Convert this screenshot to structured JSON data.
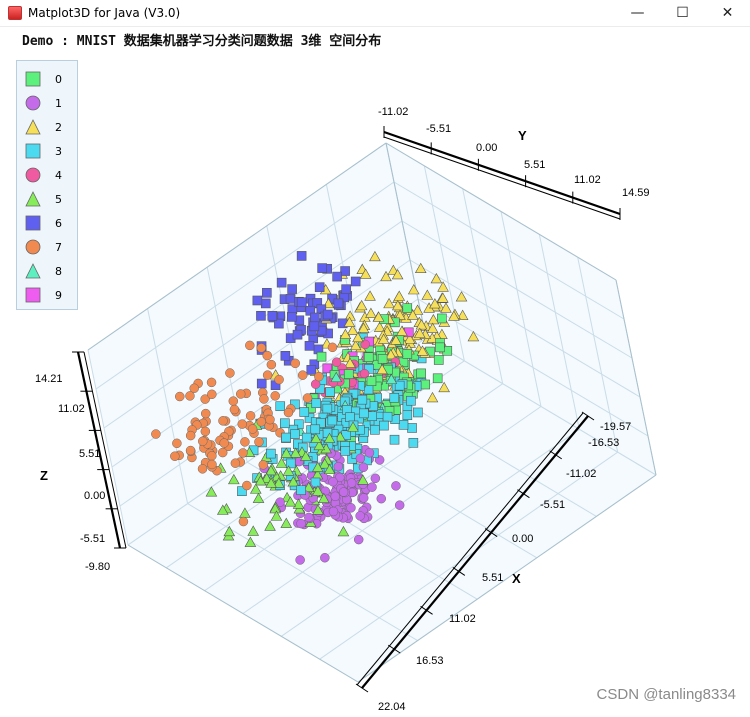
{
  "window": {
    "title": "Matplot3D for Java (V3.0)",
    "minimize": "—",
    "maximize": "☐",
    "close": "✕"
  },
  "watermark": "CSDN @tanling8334",
  "chart_data": {
    "type": "scatter3d",
    "title": "Demo : MNIST 数据集机器学习分类问题数据 3维 空间分布",
    "xlabel": "X",
    "ylabel": "Y",
    "zlabel": "Z",
    "xlim": [
      -19.57,
      22.04
    ],
    "ylim": [
      -11.02,
      14.59
    ],
    "zlim": [
      -9.8,
      14.21
    ],
    "x_ticks": [
      "-19.57",
      "-16.53",
      "-11.02",
      "-5.51",
      "0.00",
      "5.51",
      "11.02",
      "16.53",
      "22.04"
    ],
    "y_ticks": [
      "-11.02",
      "-5.51",
      "0.00",
      "5.51",
      "11.02",
      "14.59"
    ],
    "z_ticks": [
      "-9.80",
      "-5.51",
      "0.00",
      "5.51",
      "11.02",
      "14.21"
    ],
    "grid": true,
    "legend_position": "top-left",
    "series": [
      {
        "name": "0",
        "marker": "square",
        "color": "#5cf07c",
        "center": [
          -2,
          4,
          3
        ],
        "spread": [
          2.5,
          2.5,
          2
        ],
        "count": 110
      },
      {
        "name": "1",
        "marker": "circle",
        "color": "#c36be8",
        "center": [
          4,
          -3,
          -2
        ],
        "spread": [
          2.2,
          1.6,
          1.8
        ],
        "count": 130
      },
      {
        "name": "2",
        "marker": "triangle",
        "color": "#f6e05a",
        "center": [
          -6,
          7,
          4
        ],
        "spread": [
          3.5,
          2.5,
          2.5
        ],
        "count": 150
      },
      {
        "name": "3",
        "marker": "square",
        "color": "#4cdaf0",
        "center": [
          0,
          0,
          2
        ],
        "spread": [
          3,
          3,
          2
        ],
        "count": 200
      },
      {
        "name": "4",
        "marker": "circle",
        "color": "#f05aa0",
        "center": [
          -3,
          2,
          5
        ],
        "spread": [
          1.5,
          1.5,
          1.5
        ],
        "count": 18
      },
      {
        "name": "5",
        "marker": "triangle",
        "color": "#86ec5a",
        "center": [
          3,
          -6,
          2
        ],
        "spread": [
          2.5,
          2.5,
          2
        ],
        "count": 70
      },
      {
        "name": "6",
        "marker": "square",
        "color": "#5f5ff0",
        "center": [
          -11,
          3,
          8
        ],
        "spread": [
          2.5,
          2.0,
          2
        ],
        "count": 70
      },
      {
        "name": "7",
        "marker": "circle",
        "color": "#f08a50",
        "center": [
          -2,
          -8,
          9
        ],
        "spread": [
          3,
          3.5,
          2
        ],
        "count": 90
      },
      {
        "name": "8",
        "marker": "triangle",
        "color": "#5cf0c0",
        "center": [
          0,
          1,
          2
        ],
        "spread": [
          2,
          2,
          2
        ],
        "count": 10
      },
      {
        "name": "9",
        "marker": "square",
        "color": "#ef5cf0",
        "center": [
          -3,
          3,
          5
        ],
        "spread": [
          1.5,
          1.5,
          1.5
        ],
        "count": 10
      }
    ]
  }
}
